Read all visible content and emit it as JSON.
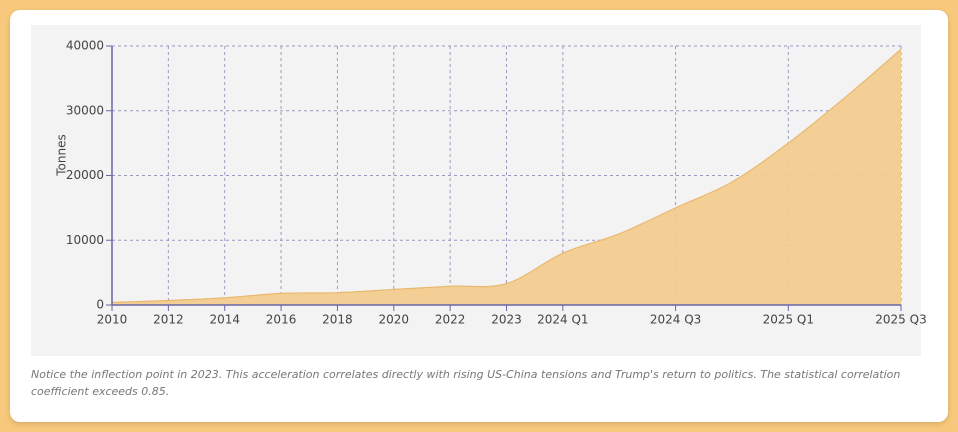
{
  "chart_data": {
    "type": "area",
    "y_label": "Tonnes",
    "categories": [
      "2010",
      "2012",
      "2014",
      "2016",
      "2018",
      "2020",
      "2022",
      "2023",
      "2024 Q1",
      null,
      "2024 Q3",
      null,
      "2025 Q1",
      null,
      "2025 Q3"
    ],
    "values": [
      400,
      700,
      1100,
      1800,
      1900,
      2400,
      2900,
      3300,
      8000,
      11000,
      15000,
      19000,
      25000,
      32000,
      39500
    ],
    "color": "#f2cc8f",
    "line_color": "#e9b96e",
    "ylim": [
      0,
      40000
    ],
    "yticks": [
      0,
      10000,
      20000,
      30000,
      40000
    ],
    "grid": true,
    "caption": "Notice the inflection point in 2023. This acceleration correlates directly with rising US-China tensions and Trump's return to politics. The statistical correlation coefficient exceeds 0.85."
  }
}
